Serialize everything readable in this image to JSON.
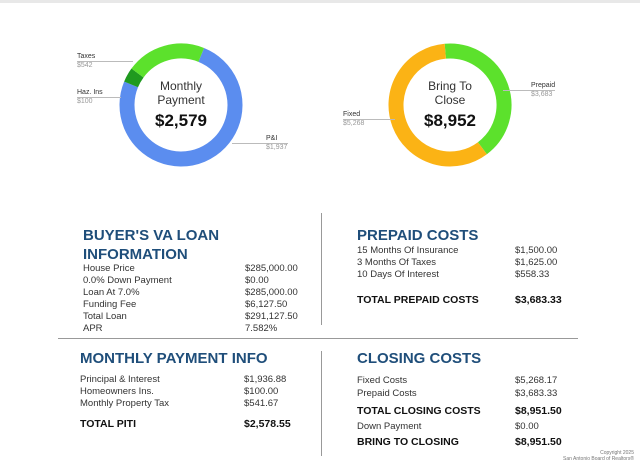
{
  "monthly_chart": {
    "label_line1": "Monthly",
    "label_line2": "Payment",
    "total": "$2,579",
    "callouts": {
      "taxes": {
        "label": "Taxes",
        "amount": "$542"
      },
      "haz": {
        "label": "Haz. Ins",
        "amount": "$100"
      },
      "pi": {
        "label": "P&I",
        "amount": "$1,937"
      }
    },
    "segments": [
      {
        "name": "P&I",
        "value": 1937,
        "color": "#5b8def"
      },
      {
        "name": "Haz. Ins",
        "value": 100,
        "color": "#1f9a1f"
      },
      {
        "name": "Taxes",
        "value": 542,
        "color": "#5ce12c"
      }
    ]
  },
  "close_chart": {
    "label_line1": "Bring To",
    "label_line2": "Close",
    "total": "$8,952",
    "callouts": {
      "prepaid": {
        "label": "Prepaid",
        "amount": "$3,683"
      },
      "fixed": {
        "label": "Fixed",
        "amount": "$5,268"
      }
    },
    "segments": [
      {
        "name": "Prepaid",
        "value": 3683,
        "color": "#5ce12c"
      },
      {
        "name": "Fixed",
        "value": 5268,
        "color": "#fbb315"
      }
    ]
  },
  "loan": {
    "title_line1": "BUYER'S VA LOAN",
    "title_line2": "INFORMATION",
    "rows": [
      {
        "label": "House Price",
        "value": "$285,000.00"
      },
      {
        "label": "0.0% Down Payment",
        "value": "$0.00"
      },
      {
        "label": "Loan At 7.0%",
        "value": "$285,000.00"
      },
      {
        "label": "Funding Fee",
        "value": "$6,127.50"
      },
      {
        "label": "Total Loan",
        "value": "$291,127.50"
      },
      {
        "label": "APR",
        "value": "7.582%"
      }
    ]
  },
  "prepaid": {
    "title": "PREPAID COSTS",
    "rows": [
      {
        "label": "15 Months Of Insurance",
        "value": "$1,500.00"
      },
      {
        "label": "3 Months Of Taxes",
        "value": "$1,625.00"
      },
      {
        "label": "10 Days Of Interest",
        "value": "$558.33"
      }
    ],
    "total_label": "TOTAL PREPAID COSTS",
    "total_value": "$3,683.33"
  },
  "monthly": {
    "title": "MONTHLY PAYMENT INFO",
    "rows": [
      {
        "label": "Principal & Interest",
        "value": "$1,936.88"
      },
      {
        "label": "Homeowners Ins.",
        "value": "$100.00"
      },
      {
        "label": "Monthly Property Tax",
        "value": "$541.67"
      }
    ],
    "total_label": "TOTAL PITI",
    "total_value": "$2,578.55"
  },
  "closing": {
    "title": "CLOSING COSTS",
    "rows": [
      {
        "label": "Fixed Costs",
        "value": "$5,268.17",
        "bold": false
      },
      {
        "label": "Prepaid Costs",
        "value": "$3,683.33",
        "bold": false
      },
      {
        "label": "TOTAL CLOSING COSTS",
        "value": "$8,951.50",
        "bold": true
      },
      {
        "label": "Down Payment",
        "value": "$0.00",
        "bold": false
      },
      {
        "label": "BRING TO CLOSING",
        "value": "$8,951.50",
        "bold": true
      }
    ]
  },
  "copyright": {
    "line1": "Copyright 2025",
    "line2": "San Antonio Board of Realtors®"
  }
}
